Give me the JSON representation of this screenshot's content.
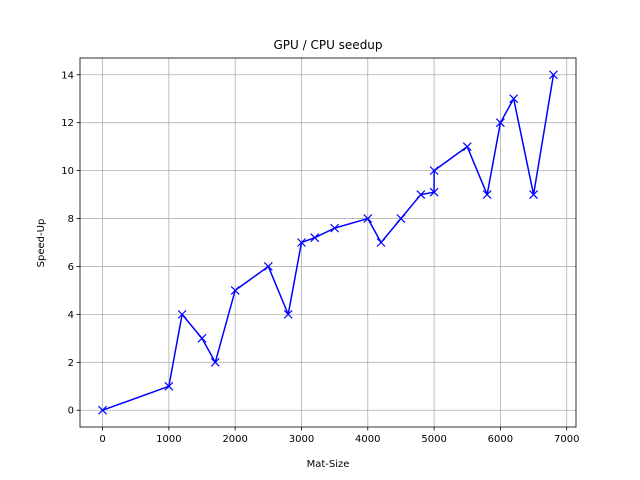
{
  "chart_data": {
    "type": "line",
    "title": "GPU / CPU seedup",
    "xlabel": "Mat-Size",
    "ylabel": "Speed-Up",
    "xlim": [
      -340,
      7140
    ],
    "ylim": [
      -0.7,
      14.7
    ],
    "xticks": [
      0,
      1000,
      2000,
      3000,
      4000,
      5000,
      6000,
      7000
    ],
    "yticks": [
      0,
      2,
      4,
      6,
      8,
      10,
      12,
      14
    ],
    "grid": true,
    "series": [
      {
        "color": "#0000ff",
        "marker": "x",
        "x": [
          0,
          1000,
          1200,
          1500,
          1700,
          2000,
          2500,
          2800,
          3000,
          3200,
          3500,
          4000,
          4200,
          4500,
          4800,
          5000,
          5000,
          5500,
          5800,
          6000,
          6200,
          6500,
          6800
        ],
        "y": [
          0,
          1,
          4,
          3,
          2,
          5,
          6,
          4,
          7,
          7.2,
          7.6,
          8,
          7,
          8,
          9,
          9.1,
          10,
          11,
          9,
          12,
          13,
          9,
          14
        ]
      }
    ]
  }
}
